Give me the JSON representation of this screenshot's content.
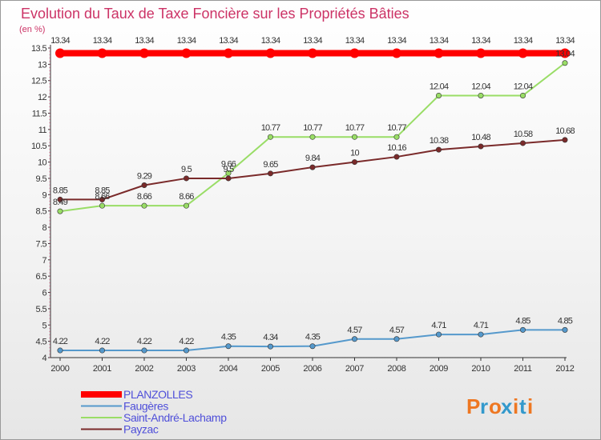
{
  "chart_data": {
    "type": "line",
    "title": "Evolution du Taux de Taxe Foncière sur les Propriétés Bâties",
    "ylabel": "(en %)",
    "xlabel": "",
    "x": [
      "2000",
      "2001",
      "2002",
      "2003",
      "2004",
      "2005",
      "2006",
      "2007",
      "2008",
      "2009",
      "2010",
      "2011",
      "2012"
    ],
    "ylim": [
      4,
      13.5
    ],
    "yticks": [
      "4",
      "4.5",
      "5",
      "5.5",
      "6",
      "6.5",
      "7",
      "7.5",
      "8",
      "8.5",
      "9",
      "9.5",
      "10",
      "10.5",
      "11",
      "11.5",
      "12",
      "12.5",
      "13",
      "13.5"
    ],
    "grid": false,
    "legend_position": "bottom-left",
    "series": [
      {
        "name": "PLANZOLLES",
        "color": "#ff0000",
        "values": [
          13.34,
          13.34,
          13.34,
          13.34,
          13.34,
          13.34,
          13.34,
          13.34,
          13.34,
          13.34,
          13.34,
          13.34,
          13.34
        ],
        "labels": [
          "13.34",
          "13.34",
          "13.34",
          "13.34",
          "13.34",
          "13.34",
          "13.34",
          "13.34",
          "13.34",
          "13.34",
          "13.34",
          "13.34",
          "13.34"
        ]
      },
      {
        "name": "Faugères",
        "color": "#5599cc",
        "values": [
          4.22,
          4.22,
          4.22,
          4.22,
          4.35,
          4.34,
          4.35,
          4.57,
          4.57,
          4.71,
          4.71,
          4.85,
          4.85
        ],
        "labels": [
          "4.22",
          "4.22",
          "4.22",
          "4.22",
          "4.35",
          "4.34",
          "4.35",
          "4.57",
          "4.57",
          "4.71",
          "4.71",
          "4.85",
          "4.85"
        ]
      },
      {
        "name": "Saint-André-Lachamp",
        "color": "#99dd66",
        "values": [
          8.49,
          8.66,
          8.66,
          8.66,
          9.66,
          10.77,
          10.77,
          10.77,
          10.77,
          12.04,
          12.04,
          12.04,
          13.04
        ],
        "labels": [
          "8.49",
          "8.66",
          "8.66",
          "8.66",
          "9.66",
          "10.77",
          "10.77",
          "10.77",
          "10.77",
          "12.04",
          "12.04",
          "12.04",
          "13.04"
        ]
      },
      {
        "name": "Payzac",
        "color": "#7a2a2a",
        "values": [
          8.85,
          8.85,
          9.29,
          9.5,
          9.5,
          9.65,
          9.84,
          10,
          10.16,
          10.38,
          10.48,
          10.58,
          10.68
        ],
        "labels": [
          "8.85",
          "8.85",
          "9.29",
          "9.5",
          "9.5",
          "9.65",
          "9.84",
          "10",
          "10.16",
          "10.38",
          "10.48",
          "10.58",
          "10.68"
        ]
      }
    ]
  },
  "legend": {
    "items": [
      {
        "label": "PLANZOLLES",
        "color": "#ff0000"
      },
      {
        "label": "Faugères",
        "color": "#5599cc"
      },
      {
        "label": "Saint-André-Lachamp",
        "color": "#99dd66"
      },
      {
        "label": "Payzac",
        "color": "#7a2a2a"
      }
    ]
  },
  "brand": {
    "name": "Proxiti",
    "letters": [
      "P",
      "r",
      "o",
      "x",
      "i",
      "t",
      "i"
    ],
    "colors": [
      "#ee7722",
      "#3399cc",
      "#ee7722",
      "#3399cc",
      "#ee7722",
      "#3399cc",
      "#ee7722"
    ]
  }
}
